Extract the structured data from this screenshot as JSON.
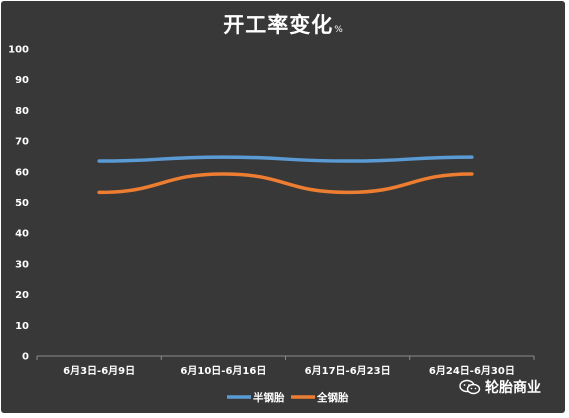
{
  "title": "开工率变化",
  "title_unit": "%",
  "watermark": "轮胎商业",
  "chart_data": {
    "type": "line",
    "title": "开工率变化",
    "categories": [
      "6月3日-6月9日",
      "6月10日-6月16日",
      "6月17日-6月23日",
      "6月24日-6月30日"
    ],
    "series": [
      {
        "name": "半钢胎",
        "color": "#5b9bd5",
        "values": [
          63.5,
          64.8,
          63.5,
          64.8
        ]
      },
      {
        "name": "全钢胎",
        "color": "#ed7d31",
        "values": [
          53.3,
          59.3,
          53.3,
          59.3
        ]
      }
    ],
    "ylim": [
      0,
      100
    ],
    "yticks": [
      0,
      10,
      20,
      30,
      40,
      50,
      60,
      70,
      80,
      90,
      100
    ],
    "grid": false,
    "legend": "bottom-center"
  },
  "colors": {
    "background": "#383838",
    "text": "#ffffff",
    "axis": "#8a8a8a"
  },
  "icons": {
    "watermark": "wechat-icon"
  }
}
